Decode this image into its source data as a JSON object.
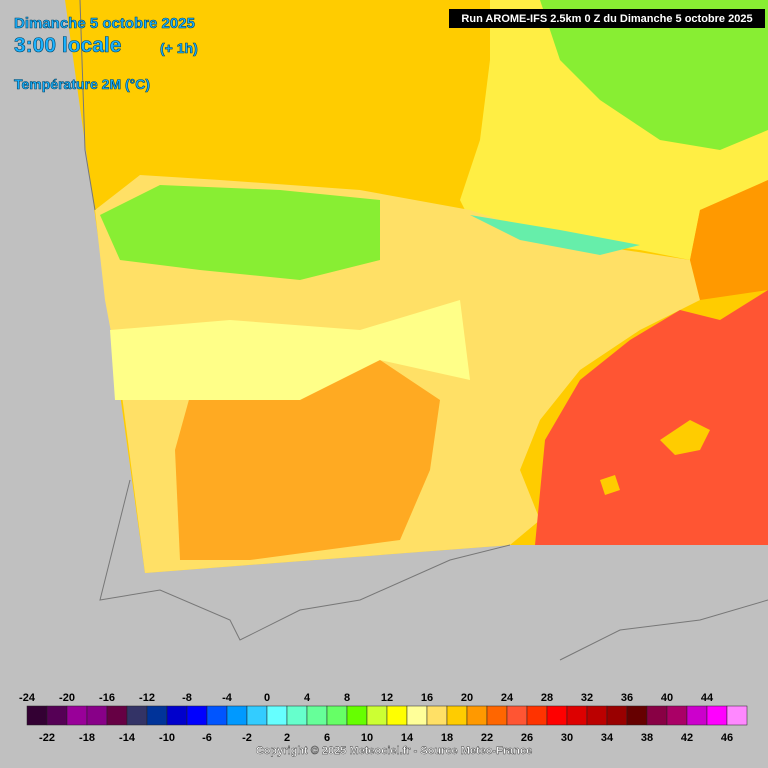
{
  "header": {
    "date": "Dimanche 5 octobre 2025",
    "time": "3:00 locale",
    "offset": "(+ 1h)",
    "variable": "Température 2M (°C)",
    "run": "Run AROME-IFS 2.5km 0 Z du Dimanche 5 octobre 2025"
  },
  "legend": {
    "levels": [
      -24,
      -22,
      -20,
      -18,
      -16,
      -14,
      -12,
      -10,
      -8,
      -6,
      -4,
      -2,
      0,
      2,
      4,
      6,
      8,
      10,
      12,
      14,
      16,
      18,
      20,
      22,
      24,
      26,
      28,
      30,
      32,
      34,
      36,
      38,
      40,
      42,
      44,
      46
    ],
    "colors": [
      "#330033",
      "#550055",
      "#990099",
      "#880088",
      "#660044",
      "#333366",
      "#003399",
      "#0000cc",
      "#0000ff",
      "#0055ff",
      "#0099ff",
      "#33ccff",
      "#66ffff",
      "#66ffcc",
      "#66ff99",
      "#66ff66",
      "#66ff00",
      "#ccff33",
      "#ffff00",
      "#ffff99",
      "#ffe066",
      "#ffcc00",
      "#ff9900",
      "#ff6600",
      "#ff5533",
      "#ff3300",
      "#ff0000",
      "#dd0000",
      "#bb0000",
      "#990000",
      "#660000",
      "#880044",
      "#aa0066",
      "#cc00cc",
      "#ff00ff",
      "#ff88ff"
    ]
  },
  "footer": "Copyright © 2025 Meteociel.fr - Source Meteo-France"
}
